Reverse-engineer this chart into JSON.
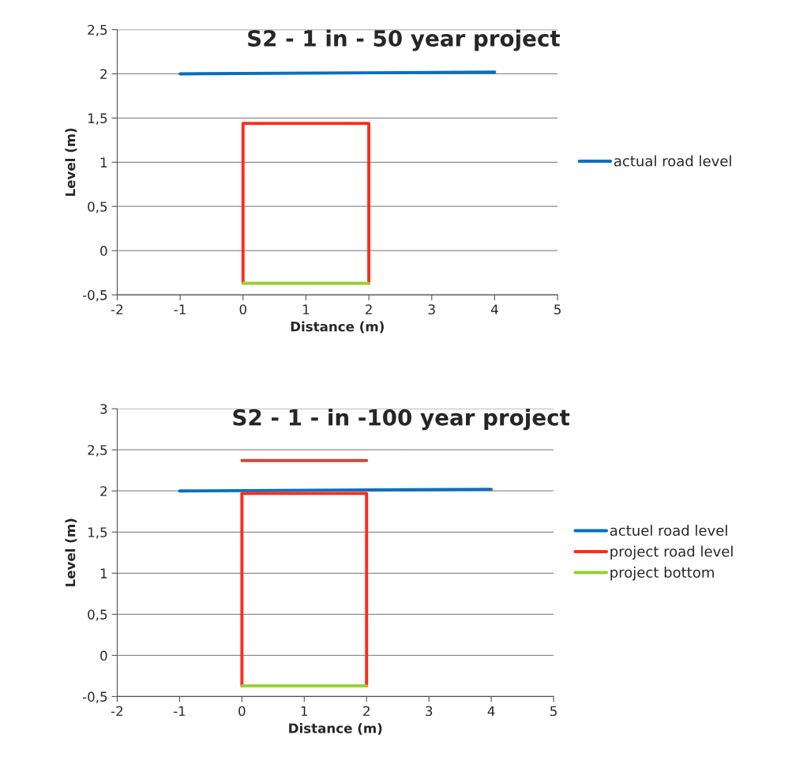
{
  "chart_data": [
    {
      "type": "line",
      "title": "S2 - 1 in - 50 year project",
      "xlabel": "Distance (m)",
      "ylabel": "Level (m)",
      "xlim": [
        -2,
        5
      ],
      "xticks": [
        -2,
        -1,
        0,
        1,
        2,
        3,
        4,
        5
      ],
      "ylim": [
        -0.5,
        2.5
      ],
      "yticks": [
        {
          "value": -0.5,
          "label": "-0,5"
        },
        0,
        {
          "value": 0.5,
          "label": "0,5"
        },
        1,
        {
          "value": 1.5,
          "label": "1,5"
        },
        2,
        {
          "value": 2.5,
          "label": "2,5"
        }
      ],
      "grid": "y",
      "legend": "right",
      "marker": "none",
      "line_style": "solid",
      "series": [
        {
          "name": "actual road level",
          "color": "#0070c0",
          "x": [
            -1,
            4
          ],
          "values": [
            2.0,
            2.02
          ]
        },
        {
          "color": "#ff2a1a",
          "x": [
            0,
            0,
            2,
            2
          ],
          "values": [
            -0.37,
            1.44,
            1.44,
            -0.37
          ]
        },
        {
          "color": "#9acd32",
          "x": [
            0,
            2
          ],
          "values": [
            -0.37,
            -0.37
          ]
        }
      ]
    },
    {
      "type": "line",
      "title": "S2 - 1 - in -100 year project",
      "xlabel": "Distance (m)",
      "ylabel": "Level (m)",
      "xlim": [
        -2,
        5
      ],
      "xticks": [
        -2,
        -1,
        0,
        1,
        2,
        3,
        4,
        5
      ],
      "ylim": [
        -0.5,
        3
      ],
      "yticks": [
        {
          "value": -0.5,
          "label": "-0,5"
        },
        0,
        {
          "value": 0.5,
          "label": "0,5"
        },
        1,
        {
          "value": 1.5,
          "label": "1,5"
        },
        2,
        {
          "value": 2.5,
          "label": "2,5"
        },
        3
      ],
      "grid": "y",
      "legend": "right",
      "marker": "none",
      "line_style": "solid",
      "series": [
        {
          "name": "actuel road level",
          "color": "#0070c0",
          "x": [
            -1,
            4
          ],
          "values": [
            2.0,
            2.02
          ]
        },
        {
          "name": "project road level",
          "color": "#ff2a1a",
          "x": [
            0,
            0,
            2,
            2
          ],
          "values": [
            -0.37,
            1.97,
            1.97,
            -0.37
          ]
        },
        {
          "name": "project bottom",
          "color": "#9acd32",
          "x": [
            0,
            2
          ],
          "values": [
            -0.37,
            -0.37
          ]
        },
        {
          "color": "#c84a44",
          "x": [
            0,
            2
          ],
          "values": [
            2.37,
            2.37
          ]
        }
      ]
    }
  ]
}
